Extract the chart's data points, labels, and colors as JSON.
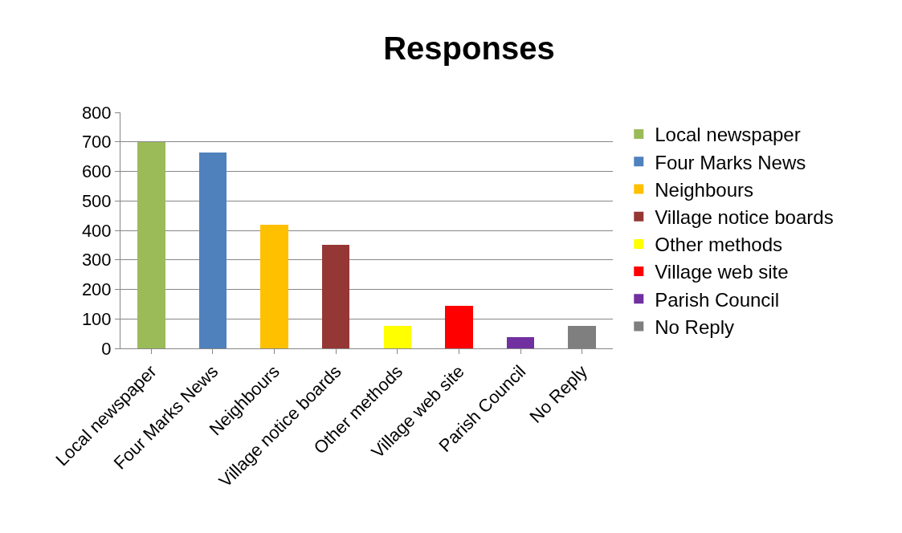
{
  "chart_data": {
    "type": "bar",
    "title": "Responses",
    "categories": [
      "Local newspaper",
      "Four Marks News",
      "Neighbours",
      "Village notice boards",
      "Other methods",
      "Village web site",
      "Parish Council",
      "No Reply"
    ],
    "series": [
      {
        "name": "Local newspaper",
        "color": "#9bbb59",
        "values": [
          700,
          null,
          null,
          null,
          null,
          null,
          null,
          null
        ]
      },
      {
        "name": "Four Marks News",
        "color": "#4f81bd",
        "values": [
          null,
          665,
          null,
          null,
          null,
          null,
          null,
          null
        ]
      },
      {
        "name": "Neighbours",
        "color": "#ffc000",
        "values": [
          null,
          null,
          420,
          null,
          null,
          null,
          null,
          null
        ]
      },
      {
        "name": "Village notice boards",
        "color": "#953735",
        "values": [
          null,
          null,
          null,
          350,
          null,
          null,
          null,
          null
        ]
      },
      {
        "name": "Other methods",
        "color": "#ffff00",
        "values": [
          null,
          null,
          null,
          null,
          75,
          null,
          null,
          null
        ]
      },
      {
        "name": "Village web site",
        "color": "#ff0000",
        "values": [
          null,
          null,
          null,
          null,
          null,
          143,
          null,
          null
        ]
      },
      {
        "name": "Parish Council",
        "color": "#7030a0",
        "values": [
          null,
          null,
          null,
          null,
          null,
          null,
          37,
          null
        ]
      },
      {
        "name": "No Reply",
        "color": "#7f7f7f",
        "values": [
          null,
          null,
          null,
          null,
          null,
          null,
          null,
          75
        ]
      }
    ],
    "stacked": true,
    "ylim": [
      0,
      800
    ],
    "yticks": [
      0,
      100,
      200,
      300,
      400,
      500,
      600,
      700,
      800
    ],
    "grid": "y",
    "legend": "right"
  }
}
